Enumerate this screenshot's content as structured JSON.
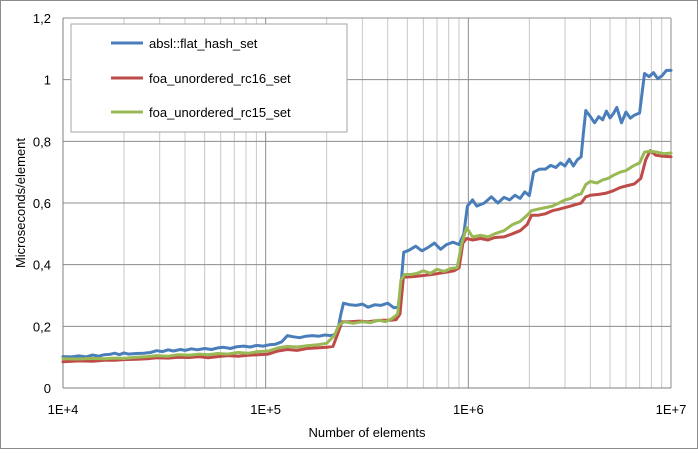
{
  "chart_data": {
    "type": "line",
    "xlabel": "Number of elements",
    "ylabel": "Microseconds/element",
    "x_scale": "log",
    "xlim": [
      10000,
      10000000
    ],
    "ylim": [
      0,
      1.2
    ],
    "x_tick_values": [
      10000,
      100000,
      1000000,
      10000000
    ],
    "x_tick_labels": [
      "1E+4",
      "1E+5",
      "1E+6",
      "1E+7"
    ],
    "y_tick_values": [
      0,
      0.2,
      0.4,
      0.6,
      0.8,
      1.0,
      1.2
    ],
    "y_tick_labels": [
      "0",
      "0,2",
      "0,4",
      "0,6",
      "0,8",
      "1",
      "1,2"
    ],
    "grid": "major and minor vertical (log), major horizontal",
    "legend_position": "top-left",
    "series": [
      {
        "name": "absl::flat_hash_set",
        "color": "#4a7ebb",
        "points": [
          [
            10000,
            0.102
          ],
          [
            11000,
            0.101
          ],
          [
            12000,
            0.104
          ],
          [
            13000,
            0.101
          ],
          [
            14000,
            0.107
          ],
          [
            15000,
            0.103
          ],
          [
            16000,
            0.108
          ],
          [
            17000,
            0.109
          ],
          [
            18000,
            0.113
          ],
          [
            19000,
            0.108
          ],
          [
            20000,
            0.114
          ],
          [
            21000,
            0.11
          ],
          [
            23000,
            0.112
          ],
          [
            25000,
            0.113
          ],
          [
            27000,
            0.115
          ],
          [
            29000,
            0.121
          ],
          [
            31000,
            0.118
          ],
          [
            33000,
            0.124
          ],
          [
            35000,
            0.12
          ],
          [
            38000,
            0.125
          ],
          [
            40000,
            0.122
          ],
          [
            43000,
            0.127
          ],
          [
            46000,
            0.124
          ],
          [
            50000,
            0.128
          ],
          [
            54000,
            0.125
          ],
          [
            58000,
            0.13
          ],
          [
            62000,
            0.132
          ],
          [
            67000,
            0.128
          ],
          [
            72000,
            0.134
          ],
          [
            78000,
            0.136
          ],
          [
            84000,
            0.133
          ],
          [
            90000,
            0.138
          ],
          [
            97000,
            0.136
          ],
          [
            104000,
            0.14
          ],
          [
            112000,
            0.142
          ],
          [
            120000,
            0.15
          ],
          [
            128000,
            0.17
          ],
          [
            137000,
            0.166
          ],
          [
            147000,
            0.163
          ],
          [
            158000,
            0.168
          ],
          [
            170000,
            0.17
          ],
          [
            183000,
            0.168
          ],
          [
            196000,
            0.172
          ],
          [
            210000,
            0.17
          ],
          [
            225000,
            0.175
          ],
          [
            235000,
            0.24
          ],
          [
            242000,
            0.275
          ],
          [
            260000,
            0.27
          ],
          [
            280000,
            0.268
          ],
          [
            300000,
            0.272
          ],
          [
            320000,
            0.262
          ],
          [
            345000,
            0.27
          ],
          [
            370000,
            0.268
          ],
          [
            400000,
            0.275
          ],
          [
            430000,
            0.26
          ],
          [
            450000,
            0.262
          ],
          [
            465000,
            0.33
          ],
          [
            480000,
            0.44
          ],
          [
            510000,
            0.447
          ],
          [
            550000,
            0.46
          ],
          [
            590000,
            0.445
          ],
          [
            630000,
            0.455
          ],
          [
            680000,
            0.47
          ],
          [
            730000,
            0.45
          ],
          [
            780000,
            0.465
          ],
          [
            840000,
            0.473
          ],
          [
            900000,
            0.465
          ],
          [
            950000,
            0.5
          ],
          [
            990000,
            0.59
          ],
          [
            1050000,
            0.61
          ],
          [
            1100000,
            0.59
          ],
          [
            1200000,
            0.6
          ],
          [
            1300000,
            0.62
          ],
          [
            1400000,
            0.6
          ],
          [
            1500000,
            0.618
          ],
          [
            1600000,
            0.61
          ],
          [
            1700000,
            0.625
          ],
          [
            1800000,
            0.615
          ],
          [
            1900000,
            0.636
          ],
          [
            2000000,
            0.624
          ],
          [
            2100000,
            0.7
          ],
          [
            2250000,
            0.71
          ],
          [
            2400000,
            0.71
          ],
          [
            2550000,
            0.722
          ],
          [
            2700000,
            0.715
          ],
          [
            2850000,
            0.73
          ],
          [
            3000000,
            0.72
          ],
          [
            3150000,
            0.742
          ],
          [
            3300000,
            0.72
          ],
          [
            3450000,
            0.74
          ],
          [
            3600000,
            0.75
          ],
          [
            3700000,
            0.83
          ],
          [
            3800000,
            0.9
          ],
          [
            4000000,
            0.88
          ],
          [
            4200000,
            0.86
          ],
          [
            4400000,
            0.88
          ],
          [
            4600000,
            0.87
          ],
          [
            4800000,
            0.898
          ],
          [
            5000000,
            0.876
          ],
          [
            5200000,
            0.89
          ],
          [
            5400000,
            0.91
          ],
          [
            5700000,
            0.86
          ],
          [
            6000000,
            0.895
          ],
          [
            6300000,
            0.875
          ],
          [
            6600000,
            0.885
          ],
          [
            7000000,
            0.892
          ],
          [
            7400000,
            1.02
          ],
          [
            7800000,
            1.01
          ],
          [
            8200000,
            1.023
          ],
          [
            8600000,
            1.003
          ],
          [
            9000000,
            1.012
          ],
          [
            9500000,
            1.03
          ],
          [
            10000000,
            1.03
          ]
        ]
      },
      {
        "name": "foa_unordered_rc16_set",
        "color": "#be4b48",
        "points": [
          [
            10000,
            0.085
          ],
          [
            12000,
            0.088
          ],
          [
            14000,
            0.087
          ],
          [
            16000,
            0.09
          ],
          [
            18000,
            0.09
          ],
          [
            20000,
            0.092
          ],
          [
            23000,
            0.093
          ],
          [
            26000,
            0.095
          ],
          [
            29000,
            0.098
          ],
          [
            33000,
            0.097
          ],
          [
            37000,
            0.1
          ],
          [
            42000,
            0.099
          ],
          [
            47000,
            0.102
          ],
          [
            52000,
            0.098
          ],
          [
            58000,
            0.102
          ],
          [
            65000,
            0.105
          ],
          [
            73000,
            0.103
          ],
          [
            82000,
            0.106
          ],
          [
            92000,
            0.108
          ],
          [
            103000,
            0.11
          ],
          [
            115000,
            0.12
          ],
          [
            128000,
            0.125
          ],
          [
            143000,
            0.122
          ],
          [
            160000,
            0.128
          ],
          [
            180000,
            0.13
          ],
          [
            200000,
            0.132
          ],
          [
            215000,
            0.135
          ],
          [
            228000,
            0.18
          ],
          [
            238000,
            0.215
          ],
          [
            260000,
            0.215
          ],
          [
            290000,
            0.217
          ],
          [
            320000,
            0.215
          ],
          [
            350000,
            0.218
          ],
          [
            380000,
            0.22
          ],
          [
            410000,
            0.22
          ],
          [
            440000,
            0.222
          ],
          [
            460000,
            0.24
          ],
          [
            478000,
            0.36
          ],
          [
            500000,
            0.36
          ],
          [
            550000,
            0.362
          ],
          [
            600000,
            0.365
          ],
          [
            660000,
            0.368
          ],
          [
            720000,
            0.372
          ],
          [
            780000,
            0.376
          ],
          [
            850000,
            0.38
          ],
          [
            900000,
            0.39
          ],
          [
            940000,
            0.47
          ],
          [
            980000,
            0.485
          ],
          [
            1050000,
            0.48
          ],
          [
            1150000,
            0.485
          ],
          [
            1250000,
            0.48
          ],
          [
            1350000,
            0.488
          ],
          [
            1500000,
            0.49
          ],
          [
            1650000,
            0.5
          ],
          [
            1800000,
            0.51
          ],
          [
            1950000,
            0.53
          ],
          [
            2050000,
            0.56
          ],
          [
            2200000,
            0.56
          ],
          [
            2400000,
            0.565
          ],
          [
            2600000,
            0.575
          ],
          [
            2800000,
            0.58
          ],
          [
            3000000,
            0.585
          ],
          [
            3200000,
            0.59
          ],
          [
            3400000,
            0.595
          ],
          [
            3600000,
            0.6
          ],
          [
            3800000,
            0.62
          ],
          [
            4000000,
            0.625
          ],
          [
            4400000,
            0.628
          ],
          [
            4800000,
            0.632
          ],
          [
            5200000,
            0.64
          ],
          [
            5600000,
            0.65
          ],
          [
            6000000,
            0.655
          ],
          [
            6600000,
            0.662
          ],
          [
            7100000,
            0.68
          ],
          [
            7500000,
            0.74
          ],
          [
            7900000,
            0.77
          ],
          [
            8400000,
            0.755
          ],
          [
            9000000,
            0.752
          ],
          [
            10000000,
            0.75
          ]
        ]
      },
      {
        "name": "foa_unordered_rc15_set",
        "color": "#98b954",
        "points": [
          [
            10000,
            0.095
          ],
          [
            12000,
            0.094
          ],
          [
            14000,
            0.096
          ],
          [
            16000,
            0.095
          ],
          [
            18000,
            0.097
          ],
          [
            20000,
            0.096
          ],
          [
            23000,
            0.1
          ],
          [
            26000,
            0.102
          ],
          [
            29000,
            0.105
          ],
          [
            33000,
            0.103
          ],
          [
            37000,
            0.108
          ],
          [
            42000,
            0.106
          ],
          [
            47000,
            0.11
          ],
          [
            52000,
            0.108
          ],
          [
            58000,
            0.112
          ],
          [
            65000,
            0.11
          ],
          [
            73000,
            0.115
          ],
          [
            82000,
            0.113
          ],
          [
            92000,
            0.118
          ],
          [
            103000,
            0.12
          ],
          [
            115000,
            0.13
          ],
          [
            128000,
            0.135
          ],
          [
            143000,
            0.133
          ],
          [
            160000,
            0.137
          ],
          [
            180000,
            0.14
          ],
          [
            200000,
            0.145
          ],
          [
            218000,
            0.17
          ],
          [
            230000,
            0.205
          ],
          [
            245000,
            0.215
          ],
          [
            270000,
            0.21
          ],
          [
            300000,
            0.215
          ],
          [
            330000,
            0.212
          ],
          [
            360000,
            0.22
          ],
          [
            390000,
            0.215
          ],
          [
            420000,
            0.225
          ],
          [
            448000,
            0.24
          ],
          [
            465000,
            0.35
          ],
          [
            485000,
            0.368
          ],
          [
            520000,
            0.368
          ],
          [
            560000,
            0.372
          ],
          [
            600000,
            0.38
          ],
          [
            650000,
            0.372
          ],
          [
            700000,
            0.385
          ],
          [
            760000,
            0.378
          ],
          [
            820000,
            0.388
          ],
          [
            880000,
            0.39
          ],
          [
            930000,
            0.47
          ],
          [
            980000,
            0.52
          ],
          [
            1050000,
            0.49
          ],
          [
            1150000,
            0.495
          ],
          [
            1250000,
            0.49
          ],
          [
            1350000,
            0.5
          ],
          [
            1500000,
            0.51
          ],
          [
            1650000,
            0.53
          ],
          [
            1800000,
            0.54
          ],
          [
            1950000,
            0.56
          ],
          [
            2050000,
            0.575
          ],
          [
            2200000,
            0.58
          ],
          [
            2400000,
            0.585
          ],
          [
            2600000,
            0.59
          ],
          [
            2800000,
            0.6
          ],
          [
            3000000,
            0.61
          ],
          [
            3200000,
            0.615
          ],
          [
            3400000,
            0.625
          ],
          [
            3600000,
            0.63
          ],
          [
            3800000,
            0.66
          ],
          [
            4000000,
            0.67
          ],
          [
            4300000,
            0.665
          ],
          [
            4600000,
            0.675
          ],
          [
            4900000,
            0.68
          ],
          [
            5200000,
            0.69
          ],
          [
            5600000,
            0.7
          ],
          [
            6000000,
            0.705
          ],
          [
            6500000,
            0.72
          ],
          [
            7000000,
            0.73
          ],
          [
            7400000,
            0.765
          ],
          [
            7900000,
            0.768
          ],
          [
            8500000,
            0.765
          ],
          [
            9200000,
            0.76
          ],
          [
            10000000,
            0.762
          ]
        ]
      }
    ]
  }
}
